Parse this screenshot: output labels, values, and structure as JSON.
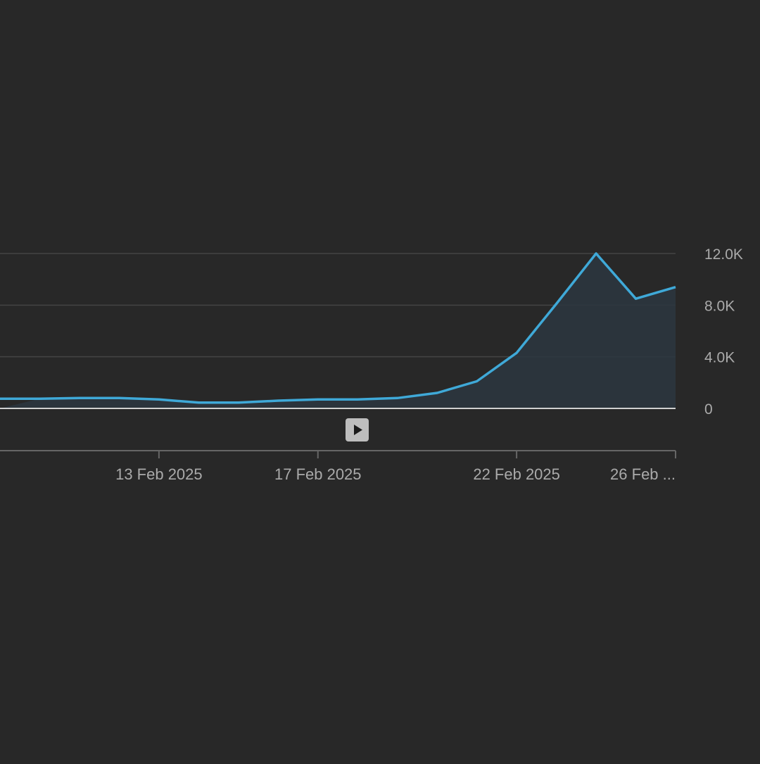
{
  "chart_data": {
    "type": "area",
    "title": "",
    "xlabel": "",
    "ylabel": "",
    "x": [
      "10 Feb 2025",
      "11 Feb 2025",
      "12 Feb 2025",
      "13 Feb 2025",
      "14 Feb 2025",
      "15 Feb 2025",
      "16 Feb 2025",
      "17 Feb 2025",
      "18 Feb 2025",
      "19 Feb 2025",
      "20 Feb 2025",
      "21 Feb 2025",
      "22 Feb 2025",
      "23 Feb 2025",
      "24 Feb 2025",
      "25 Feb 2025",
      "26 Feb 2025"
    ],
    "series": [
      {
        "values": [
          750,
          800,
          800,
          700,
          450,
          450,
          600,
          700,
          700,
          800,
          1200,
          2100,
          4300,
          8100,
          12000,
          8500,
          9400
        ],
        "color": "#3fa9d8"
      }
    ],
    "xlim": [
      "9 Feb 2025",
      "26 Feb 2025"
    ],
    "ylim": [
      0,
      12000
    ],
    "y_ticks": [
      "0",
      "4.0K",
      "8.0K",
      "12.0K"
    ],
    "x_ticks": [
      "13 Feb 2025",
      "17 Feb 2025",
      "22 Feb 2025",
      "26 Feb ..."
    ],
    "y_axis_side": "right",
    "grid": true,
    "legend": "none",
    "colors": {
      "background": "#282828",
      "line": "#3fa9d8",
      "area_fill": "#2b3640",
      "grid": "#444444",
      "baseline": "#d0d0d0",
      "tick_text": "#aaaaaa"
    }
  },
  "controls": {
    "play_icon": "play-icon"
  }
}
